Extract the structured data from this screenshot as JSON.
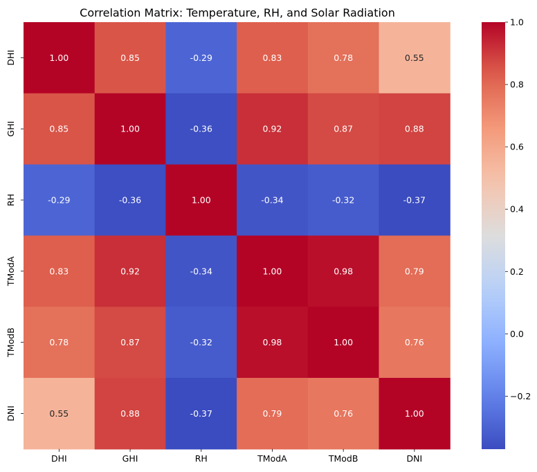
{
  "chart_data": {
    "type": "heatmap",
    "title": "Correlation Matrix: Temperature, RH, and Solar Radiation",
    "xlabel": "",
    "ylabel": "",
    "x_categories": [
      "DHI",
      "GHI",
      "RH",
      "TModA",
      "TModB",
      "DNI"
    ],
    "y_categories": [
      "DHI",
      "GHI",
      "RH",
      "TModA",
      "TModB",
      "DNI"
    ],
    "values": [
      [
        1.0,
        0.85,
        -0.29,
        0.83,
        0.78,
        0.55
      ],
      [
        0.85,
        1.0,
        -0.36,
        0.92,
        0.87,
        0.88
      ],
      [
        -0.29,
        -0.36,
        1.0,
        -0.34,
        -0.32,
        -0.37
      ],
      [
        0.83,
        0.92,
        -0.34,
        1.0,
        0.98,
        0.79
      ],
      [
        0.78,
        0.87,
        -0.32,
        0.98,
        1.0,
        0.76
      ],
      [
        0.55,
        0.88,
        -0.37,
        0.79,
        0.76,
        1.0
      ]
    ],
    "cell_labels": [
      [
        "1.00",
        "0.85",
        "-0.29",
        "0.83",
        "0.78",
        "0.55"
      ],
      [
        "0.85",
        "1.00",
        "-0.36",
        "0.92",
        "0.87",
        "0.88"
      ],
      [
        "-0.29",
        "-0.36",
        "1.00",
        "-0.34",
        "-0.32",
        "-0.37"
      ],
      [
        "0.83",
        "0.92",
        "-0.34",
        "1.00",
        "0.98",
        "0.79"
      ],
      [
        "0.78",
        "0.87",
        "-0.32",
        "0.98",
        "1.00",
        "0.76"
      ],
      [
        "0.55",
        "0.88",
        "-0.37",
        "0.79",
        "0.76",
        "1.00"
      ]
    ],
    "colormap": "coolwarm",
    "colorbar": {
      "vmin": -0.37,
      "vmax": 1.0,
      "ticks": [
        -0.2,
        0.0,
        0.2,
        0.4,
        0.6,
        0.8,
        1.0
      ],
      "tick_labels": [
        "−0.2",
        "0.0",
        "0.2",
        "0.4",
        "0.6",
        "0.8",
        "1.0"
      ]
    },
    "grid": false,
    "legend": "colorbar-right"
  }
}
